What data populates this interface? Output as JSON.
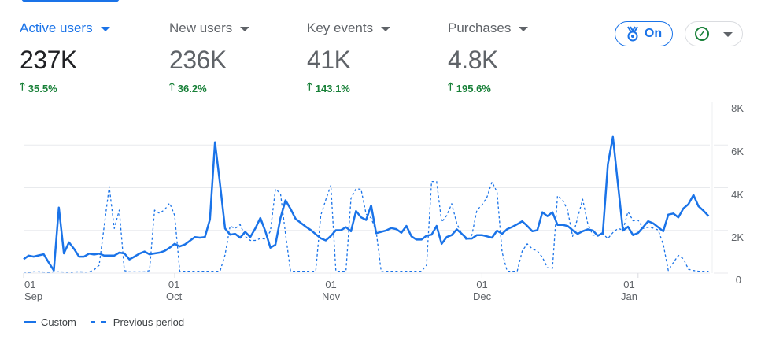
{
  "metrics": [
    {
      "label": "Active users",
      "value": "237K",
      "delta": "35.5%",
      "active": true
    },
    {
      "label": "New users",
      "value": "236K",
      "delta": "36.2%",
      "active": false
    },
    {
      "label": "Key events",
      "value": "41K",
      "delta": "143.1%",
      "active": false
    },
    {
      "label": "Purchases",
      "value": "4.8K",
      "delta": "195.6%",
      "active": false
    }
  ],
  "icons": {
    "delta": "arrow-up-icon",
    "caret": "caret-down-icon",
    "badge": "medal-icon",
    "status": "check-circle-icon"
  },
  "toolbar": {
    "insights_toggle_label": "On"
  },
  "colors": {
    "accent": "#1a73e8",
    "positive": "#188038",
    "text": "#202124",
    "muted": "#5f6368"
  },
  "chart_data": {
    "type": "line",
    "x_start": "Sep 01",
    "x_end": "Jan 15",
    "x_interval": "daily",
    "x_ticks": [
      {
        "day": "01",
        "month": "Sep"
      },
      {
        "day": "01",
        "month": "Oct"
      },
      {
        "day": "01",
        "month": "Nov"
      },
      {
        "day": "01",
        "month": "Dec"
      },
      {
        "day": "01",
        "month": "Jan"
      }
    ],
    "y_ticks": [
      "8K",
      "6K",
      "4K",
      "2K",
      "0"
    ],
    "ylim": [
      0,
      8000
    ],
    "grid": true,
    "legend_position": "bottom-left",
    "series": [
      {
        "name": "Custom",
        "style": "solid",
        "values": [
          650,
          820,
          770,
          830,
          880,
          490,
          120,
          3070,
          920,
          1440,
          1140,
          770,
          770,
          910,
          870,
          910,
          820,
          820,
          820,
          960,
          920,
          640,
          770,
          910,
          1010,
          880,
          920,
          960,
          1040,
          1190,
          1370,
          1250,
          1340,
          1510,
          1690,
          1660,
          1690,
          2520,
          6130,
          4170,
          2090,
          1800,
          1840,
          1660,
          1930,
          1690,
          2090,
          2580,
          1960,
          1190,
          1330,
          2580,
          3410,
          3010,
          2540,
          2360,
          2180,
          2020,
          1820,
          1630,
          1530,
          1740,
          2010,
          2010,
          2150,
          1960,
          2910,
          2610,
          2490,
          3170,
          1870,
          1930,
          2000,
          2110,
          2060,
          1890,
          2210,
          1720,
          1570,
          1570,
          1750,
          1800,
          2210,
          1370,
          1690,
          1780,
          2050,
          1840,
          1620,
          1620,
          1780,
          1780,
          1720,
          1660,
          1990,
          1840,
          2060,
          2160,
          2290,
          2430,
          2210,
          1960,
          2010,
          2850,
          2670,
          2850,
          2260,
          2260,
          2210,
          2010,
          1840,
          1960,
          2050,
          2000,
          1750,
          1880,
          5090,
          6380,
          4170,
          1990,
          2170,
          1780,
          1880,
          2150,
          2430,
          2330,
          2150,
          1960,
          2740,
          2790,
          2610,
          3030,
          3230,
          3660,
          3130,
          2920,
          2670
        ]
      },
      {
        "name": "Previous period",
        "style": "dashed",
        "values": [
          50,
          40,
          60,
          60,
          50,
          40,
          60,
          60,
          50,
          40,
          50,
          60,
          50,
          50,
          150,
          370,
          2200,
          4050,
          2090,
          2950,
          120,
          60,
          60,
          60,
          60,
          120,
          2950,
          2800,
          2970,
          3280,
          2700,
          90,
          90,
          90,
          90,
          90,
          90,
          90,
          90,
          90,
          860,
          2210,
          2090,
          2270,
          1720,
          1530,
          1530,
          1620,
          1600,
          1960,
          3930,
          3740,
          1840,
          90,
          90,
          90,
          90,
          90,
          90,
          2700,
          3440,
          4110,
          90,
          90,
          90,
          3500,
          3950,
          3930,
          2760,
          2580,
          1960,
          60,
          90,
          90,
          90,
          90,
          90,
          90,
          90,
          90,
          370,
          4290,
          4290,
          2390,
          2700,
          3250,
          2330,
          1840,
          1530,
          1780,
          2950,
          3190,
          3560,
          4270,
          3800,
          980,
          90,
          90,
          90,
          1040,
          1370,
          1130,
          1040,
          740,
          250,
          220,
          3620,
          3440,
          2950,
          1720,
          2580,
          3460,
          2330,
          1780,
          1780,
          1840,
          1620,
          1900,
          2090,
          2020,
          2880,
          2450,
          2480,
          2090,
          2150,
          2110,
          2020,
          1350,
          120,
          490,
          830,
          670,
          180,
          120,
          90,
          90,
          90
        ]
      }
    ]
  }
}
